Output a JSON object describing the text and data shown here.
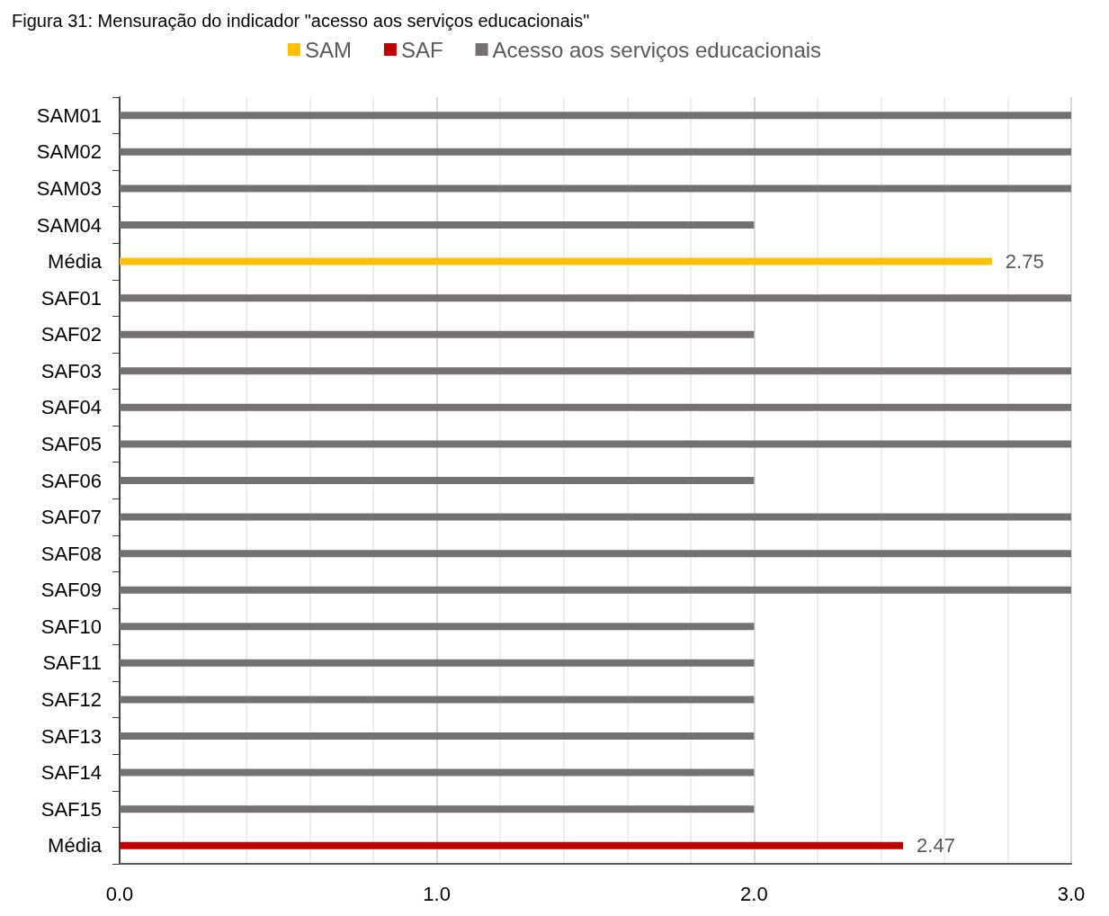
{
  "chart_data": {
    "type": "bar",
    "orientation": "horizontal",
    "title": "Figura 31: Mensuração do indicador \"acesso aos serviços educacionais\"",
    "categories": [
      "SAM01",
      "SAM02",
      "SAM03",
      "SAM04",
      "Média",
      "SAF01",
      "SAF02",
      "SAF03",
      "SAF04",
      "SAF05",
      "SAF06",
      "SAF07",
      "SAF08",
      "SAF09",
      "SAF10",
      "SAF11",
      "SAF12",
      "SAF13",
      "SAF14",
      "SAF15",
      "Média"
    ],
    "series": [
      {
        "name": "SAM",
        "color": "#ffc000",
        "values": [
          null,
          null,
          null,
          null,
          2.75,
          null,
          null,
          null,
          null,
          null,
          null,
          null,
          null,
          null,
          null,
          null,
          null,
          null,
          null,
          null,
          null
        ],
        "value_labels": [
          null,
          null,
          null,
          null,
          "2.75",
          null,
          null,
          null,
          null,
          null,
          null,
          null,
          null,
          null,
          null,
          null,
          null,
          null,
          null,
          null,
          null
        ]
      },
      {
        "name": "SAF",
        "color": "#c00000",
        "values": [
          null,
          null,
          null,
          null,
          null,
          null,
          null,
          null,
          null,
          null,
          null,
          null,
          null,
          null,
          null,
          null,
          null,
          null,
          null,
          null,
          2.47
        ],
        "value_labels": [
          null,
          null,
          null,
          null,
          null,
          null,
          null,
          null,
          null,
          null,
          null,
          null,
          null,
          null,
          null,
          null,
          null,
          null,
          null,
          null,
          "2.47"
        ]
      },
      {
        "name": "Acesso aos serviços educacionais",
        "color": "#767171",
        "values": [
          3,
          3,
          3,
          2,
          null,
          3,
          2,
          3,
          3,
          3,
          2,
          3,
          3,
          3,
          2,
          2,
          2,
          2,
          2,
          2,
          null
        ]
      }
    ],
    "xlim": [
      0,
      3
    ],
    "xticks": [
      {
        "value": 0,
        "label": "0.0"
      },
      {
        "value": 0.2,
        "label": null
      },
      {
        "value": 0.4,
        "label": null
      },
      {
        "value": 0.6,
        "label": null
      },
      {
        "value": 0.8,
        "label": null
      },
      {
        "value": 1,
        "label": "1.0"
      },
      {
        "value": 1.2,
        "label": null
      },
      {
        "value": 1.4,
        "label": null
      },
      {
        "value": 1.6,
        "label": null
      },
      {
        "value": 1.8,
        "label": null
      },
      {
        "value": 2,
        "label": "2.0"
      },
      {
        "value": 2.2,
        "label": null
      },
      {
        "value": 2.4,
        "label": null
      },
      {
        "value": 2.6,
        "label": null
      },
      {
        "value": 2.8,
        "label": null
      },
      {
        "value": 3,
        "label": "3.0"
      }
    ],
    "grid": true,
    "legend": "top"
  }
}
